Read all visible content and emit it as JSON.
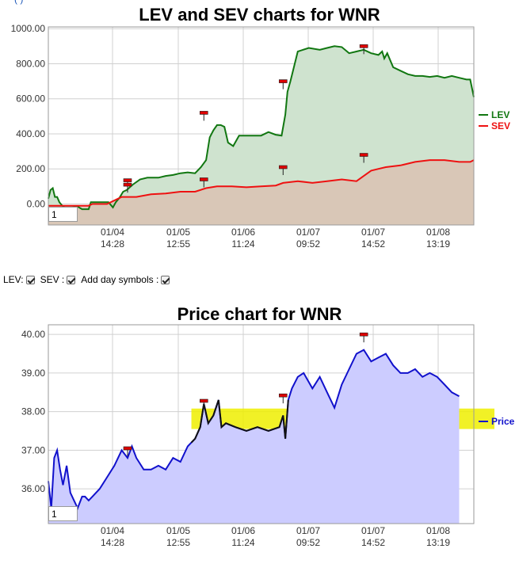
{
  "top_link": "(                         )",
  "lev_chart": {
    "title": "LEV and SEV charts for WNR",
    "zoom_value": "1",
    "legend": [
      {
        "label": "LEV",
        "color": "#117711"
      },
      {
        "label": "SEV",
        "color": "#ee1111"
      }
    ]
  },
  "controls": {
    "lev_label": "LEV:",
    "sev_label": "SEV :",
    "day_symbols_label": "Add day symbols :"
  },
  "price_chart": {
    "title": "Price chart for WNR",
    "zoom_value": "1",
    "legend": [
      {
        "label": "Price",
        "color": "#1111cc"
      }
    ]
  },
  "chart_data": [
    {
      "type": "area",
      "title": "LEV and SEV charts for WNR",
      "ylim": [
        -120,
        1010
      ],
      "yticks": [
        "1000.00",
        "800.00",
        "600.00",
        "400.00",
        "200.00",
        "0.00"
      ],
      "xticks": [
        {
          "date": "01/04",
          "time": "14:28"
        },
        {
          "date": "01/05",
          "time": "12:55"
        },
        {
          "date": "01/06",
          "time": "11:24"
        },
        {
          "date": "01/07",
          "time": "09:52"
        },
        {
          "date": "01/07",
          "time": "14:52"
        },
        {
          "date": "01/08",
          "time": "13:19"
        }
      ],
      "grid": true,
      "legend_position": "right",
      "series": [
        {
          "name": "LEV",
          "color": "#117711",
          "fill": "#cfe3cf",
          "values": [
            [
              0,
              30
            ],
            [
              3,
              80
            ],
            [
              6,
              90
            ],
            [
              9,
              40
            ],
            [
              12,
              40
            ],
            [
              15,
              10
            ],
            [
              19,
              -10
            ],
            [
              22,
              -20
            ],
            [
              25,
              -20
            ],
            [
              28,
              -20
            ],
            [
              32,
              -20
            ],
            [
              36,
              -18
            ],
            [
              40,
              -15
            ],
            [
              46,
              -30
            ],
            [
              55,
              -30
            ],
            [
              58,
              10
            ],
            [
              66,
              10
            ],
            [
              75,
              10
            ],
            [
              82,
              10
            ],
            [
              88,
              -20
            ],
            [
              92,
              10
            ],
            [
              97,
              35
            ],
            [
              102,
              70
            ],
            [
              107,
              80
            ],
            [
              115,
              110
            ],
            [
              125,
              140
            ],
            [
              135,
              150
            ],
            [
              150,
              150
            ],
            [
              160,
              160
            ],
            [
              170,
              165
            ],
            [
              180,
              175
            ],
            [
              190,
              180
            ],
            [
              200,
              175
            ],
            [
              208,
              210
            ],
            [
              215,
              250
            ],
            [
              220,
              380
            ],
            [
              225,
              420
            ],
            [
              230,
              450
            ],
            [
              235,
              450
            ],
            [
              240,
              440
            ],
            [
              245,
              350
            ],
            [
              252,
              330
            ],
            [
              260,
              390
            ],
            [
              275,
              390
            ],
            [
              290,
              390
            ],
            [
              300,
              410
            ],
            [
              310,
              395
            ],
            [
              318,
              390
            ],
            [
              323,
              510
            ],
            [
              326,
              640
            ],
            [
              330,
              700
            ],
            [
              340,
              870
            ],
            [
              355,
              890
            ],
            [
              370,
              880
            ],
            [
              380,
              890
            ],
            [
              390,
              900
            ],
            [
              400,
              895
            ],
            [
              410,
              860
            ],
            [
              420,
              870
            ],
            [
              430,
              880
            ],
            [
              440,
              860
            ],
            [
              450,
              850
            ],
            [
              455,
              870
            ],
            [
              458,
              830
            ],
            [
              462,
              860
            ],
            [
              470,
              780
            ],
            [
              480,
              760
            ],
            [
              490,
              740
            ],
            [
              500,
              730
            ],
            [
              510,
              730
            ],
            [
              520,
              725
            ],
            [
              530,
              730
            ],
            [
              540,
              720
            ],
            [
              550,
              730
            ],
            [
              560,
              720
            ],
            [
              570,
              710
            ],
            [
              575,
              710
            ],
            [
              580,
              610
            ]
          ]
        },
        {
          "name": "SEV",
          "color": "#ee1111",
          "fill": "#d9c3b4",
          "values": [
            [
              0,
              -10
            ],
            [
              20,
              -10
            ],
            [
              40,
              -10
            ],
            [
              55,
              -10
            ],
            [
              60,
              0
            ],
            [
              80,
              0
            ],
            [
              95,
              30
            ],
            [
              100,
              40
            ],
            [
              120,
              40
            ],
            [
              140,
              55
            ],
            [
              160,
              60
            ],
            [
              180,
              70
            ],
            [
              200,
              70
            ],
            [
              215,
              90
            ],
            [
              230,
              100
            ],
            [
              250,
              100
            ],
            [
              270,
              95
            ],
            [
              290,
              100
            ],
            [
              310,
              105
            ],
            [
              320,
              120
            ],
            [
              340,
              130
            ],
            [
              360,
              120
            ],
            [
              380,
              130
            ],
            [
              400,
              140
            ],
            [
              420,
              130
            ],
            [
              430,
              160
            ],
            [
              440,
              190
            ],
            [
              450,
              200
            ],
            [
              460,
              210
            ],
            [
              480,
              220
            ],
            [
              500,
              240
            ],
            [
              520,
              250
            ],
            [
              540,
              250
            ],
            [
              560,
              240
            ],
            [
              575,
              240
            ],
            [
              580,
              250
            ]
          ]
        }
      ],
      "day_symbols": [
        [
          108,
          135
        ],
        [
          108,
          110
        ],
        [
          212,
          140
        ],
        [
          212,
          520
        ],
        [
          320,
          210
        ],
        [
          320,
          700
        ],
        [
          430,
          280
        ],
        [
          430,
          900
        ]
      ]
    },
    {
      "type": "area",
      "title": "Price chart for WNR",
      "ylim": [
        35.1,
        40.25
      ],
      "yticks": [
        "40.00",
        "39.00",
        "38.00",
        "37.00",
        "36.00"
      ],
      "xticks": [
        {
          "date": "01/04",
          "time": "14:28"
        },
        {
          "date": "01/05",
          "time": "12:55"
        },
        {
          "date": "01/06",
          "time": "11:24"
        },
        {
          "date": "01/07",
          "time": "09:52"
        },
        {
          "date": "01/07",
          "time": "14:52"
        },
        {
          "date": "01/08",
          "time": "13:19"
        }
      ],
      "grid": true,
      "legend_position": "right",
      "highlight_band": {
        "from": 37.55,
        "to": 38.08,
        "x_start": 195,
        "color": "#eeee00"
      },
      "series": [
        {
          "name": "Price",
          "color": "#1111cc",
          "fill": "#ccccff",
          "values": [
            [
              0,
              36.2
            ],
            [
              4,
              35.5
            ],
            [
              8,
              36.8
            ],
            [
              12,
              37.0
            ],
            [
              16,
              36.5
            ],
            [
              20,
              36.1
            ],
            [
              25,
              36.6
            ],
            [
              30,
              35.9
            ],
            [
              35,
              35.7
            ],
            [
              40,
              35.5
            ],
            [
              46,
              35.8
            ],
            [
              50,
              35.8
            ],
            [
              55,
              35.7
            ],
            [
              60,
              35.8
            ],
            [
              70,
              36.0
            ],
            [
              80,
              36.3
            ],
            [
              90,
              36.6
            ],
            [
              100,
              37.0
            ],
            [
              108,
              36.8
            ],
            [
              114,
              37.1
            ],
            [
              120,
              36.8
            ],
            [
              130,
              36.5
            ],
            [
              140,
              36.5
            ],
            [
              150,
              36.6
            ],
            [
              160,
              36.5
            ],
            [
              170,
              36.8
            ],
            [
              180,
              36.7
            ],
            [
              190,
              37.1
            ],
            [
              195,
              37.2
            ],
            [
              200,
              37.3
            ],
            [
              207,
              37.6
            ],
            [
              212,
              38.2
            ],
            [
              218,
              37.7
            ],
            [
              225,
              37.9
            ],
            [
              232,
              38.3
            ],
            [
              236,
              37.6
            ],
            [
              242,
              37.7
            ],
            [
              255,
              37.6
            ],
            [
              270,
              37.5
            ],
            [
              285,
              37.6
            ],
            [
              300,
              37.5
            ],
            [
              315,
              37.6
            ],
            [
              320,
              37.9
            ],
            [
              323,
              37.3
            ],
            [
              327,
              38.3
            ],
            [
              332,
              38.6
            ],
            [
              340,
              38.9
            ],
            [
              348,
              39.0
            ],
            [
              360,
              38.6
            ],
            [
              370,
              38.9
            ],
            [
              380,
              38.5
            ],
            [
              390,
              38.1
            ],
            [
              400,
              38.7
            ],
            [
              410,
              39.1
            ],
            [
              420,
              39.5
            ],
            [
              430,
              39.6
            ],
            [
              440,
              39.3
            ],
            [
              450,
              39.4
            ],
            [
              460,
              39.5
            ],
            [
              470,
              39.2
            ],
            [
              480,
              39.0
            ],
            [
              490,
              39.0
            ],
            [
              500,
              39.1
            ],
            [
              510,
              38.9
            ],
            [
              520,
              39.0
            ],
            [
              530,
              38.9
            ],
            [
              540,
              38.7
            ],
            [
              550,
              38.5
            ],
            [
              560,
              38.4
            ]
          ]
        }
      ],
      "day_symbols": [
        [
          108,
          37.05
        ],
        [
          212,
          38.28
        ],
        [
          320,
          38.42
        ],
        [
          430,
          40.0
        ]
      ]
    }
  ]
}
